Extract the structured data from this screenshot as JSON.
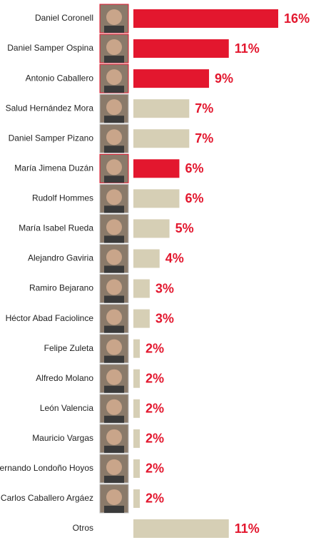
{
  "chart_data": {
    "type": "bar",
    "orientation": "horizontal",
    "categories": [
      "Daniel Coronell",
      "Daniel Samper Ospina",
      "Antonio Caballero",
      "Salud Hernández Mora",
      "Daniel Samper Pizano",
      "María Jimena Duzán",
      "Rudolf Hommes",
      "María Isabel Rueda",
      "Alejandro Gaviria",
      "Ramiro Bejarano",
      "Héctor Abad Faciolince",
      "Felipe Zuleta",
      "Alfredo Molano",
      "León Valencia",
      "Mauricio Vargas",
      "Fernando Londoño Hoyos",
      "Carlos Caballero Argáez",
      "Otros"
    ],
    "values": [
      16,
      11,
      9,
      7,
      7,
      6,
      6,
      5,
      4,
      3,
      3,
      2,
      2,
      2,
      2,
      2,
      2,
      11
    ],
    "value_labels": [
      "16%",
      "11%",
      "9%",
      "7%",
      "7%",
      "6%",
      "6%",
      "5%",
      "4%",
      "3%",
      "3%",
      "2%",
      "2%",
      "2%",
      "2%",
      "2%",
      "2%",
      "11%"
    ],
    "colors": [
      "#e3172e",
      "#e3172e",
      "#e3172e",
      "#d6cfb5",
      "#d6cfb5",
      "#e3172e",
      "#d6cfb5",
      "#d6cfb5",
      "#d6cfb5",
      "#d6cfb5",
      "#d6cfb5",
      "#d6cfb5",
      "#d6cfb5",
      "#d6cfb5",
      "#d6cfb5",
      "#d6cfb5",
      "#d6cfb5",
      "#d6cfb5"
    ]
  }
}
